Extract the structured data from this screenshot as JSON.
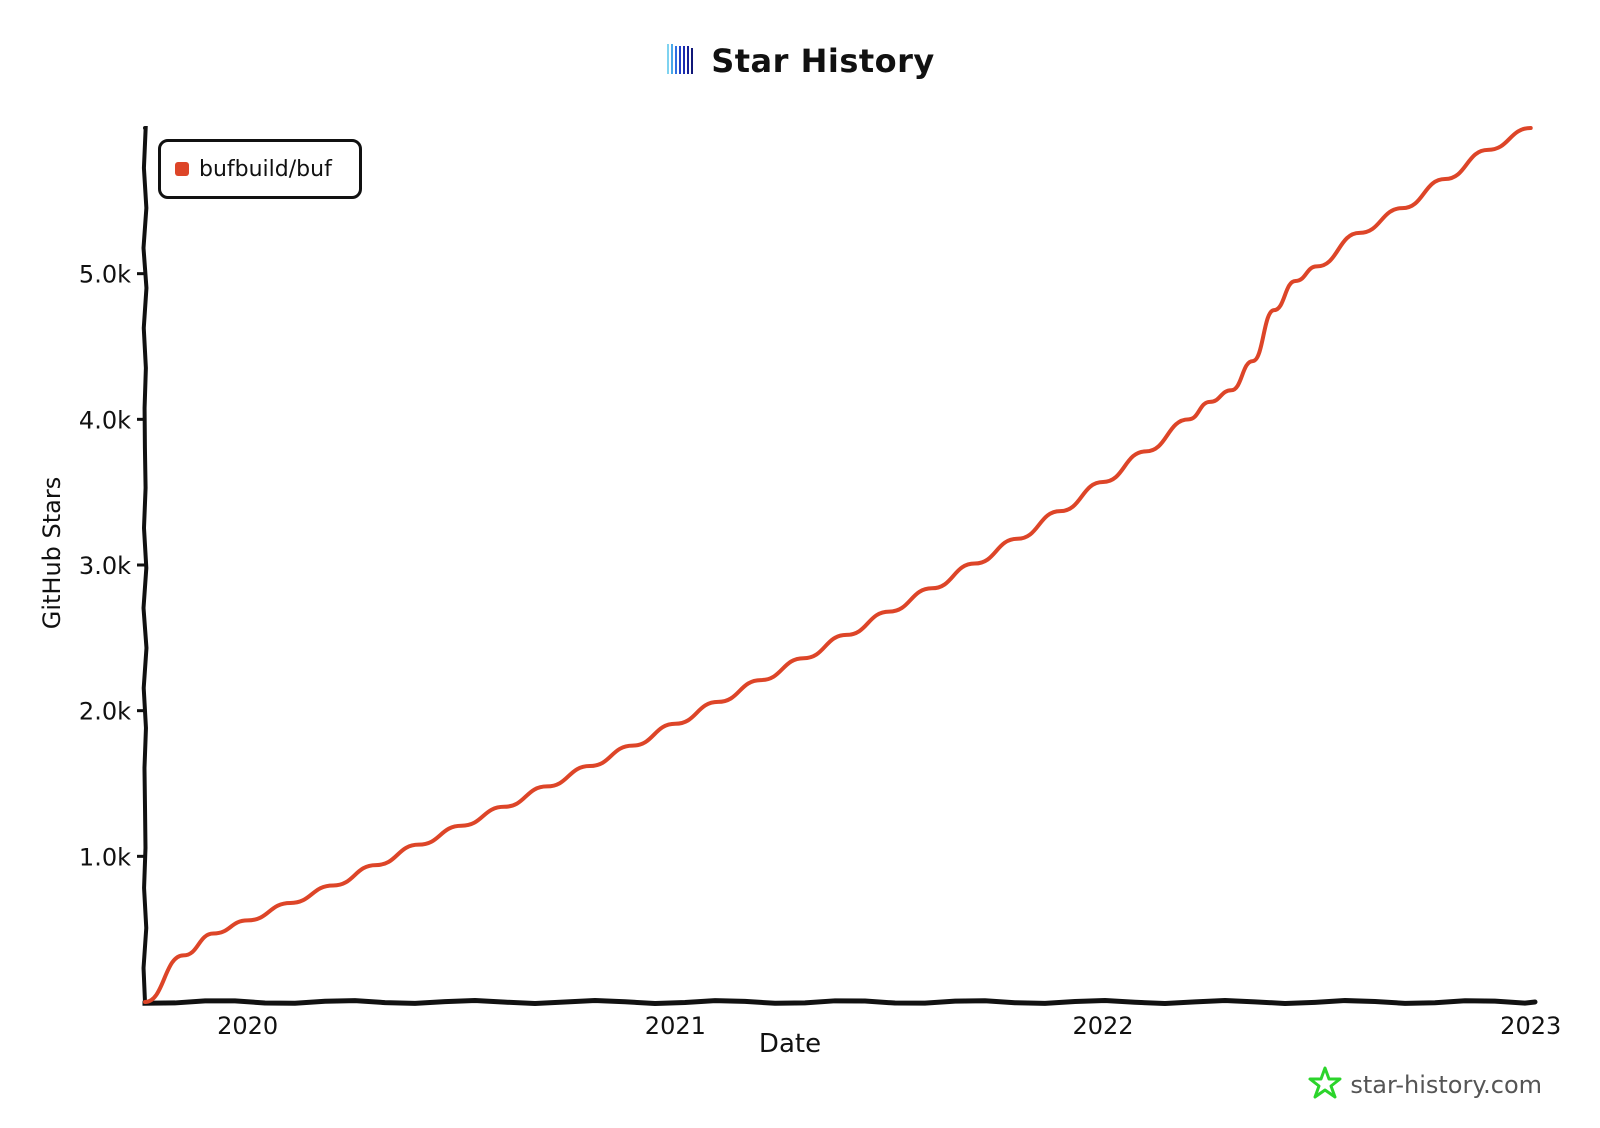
{
  "title": "Star History",
  "brand": {
    "text": "star-history.com",
    "icon": "star-icon",
    "color": "#2bd42b"
  },
  "logo_icon": "star-history-logo-icon",
  "chart_data": {
    "type": "line",
    "title": "Star History",
    "xlabel": "Date",
    "ylabel": "GitHub Stars",
    "x_ticks": [
      "2020",
      "2021",
      "2022",
      "2023"
    ],
    "y_ticks": [
      "1.0k",
      "2.0k",
      "3.0k",
      "4.0k",
      "5.0k"
    ],
    "y_tick_values": [
      1000,
      2000,
      3000,
      4000,
      5000
    ],
    "ylim": [
      0,
      6000
    ],
    "xlim": [
      2019.76,
      2023.01
    ],
    "legend": "top-left",
    "series": [
      {
        "name": "bufbuild/buf",
        "color": "#dd4528",
        "x": [
          2019.76,
          2019.85,
          2019.92,
          2020.0,
          2020.1,
          2020.2,
          2020.3,
          2020.4,
          2020.5,
          2020.6,
          2020.7,
          2020.8,
          2020.9,
          2021.0,
          2021.1,
          2021.2,
          2021.3,
          2021.4,
          2021.5,
          2021.6,
          2021.7,
          2021.8,
          2021.9,
          2022.0,
          2022.1,
          2022.2,
          2022.25,
          2022.3,
          2022.35,
          2022.4,
          2022.45,
          2022.5,
          2022.6,
          2022.7,
          2022.8,
          2022.9,
          2023.0
        ],
        "y": [
          0,
          320,
          470,
          560,
          680,
          800,
          940,
          1080,
          1210,
          1340,
          1480,
          1620,
          1760,
          1910,
          2060,
          2210,
          2360,
          2520,
          2680,
          2840,
          3010,
          3180,
          3370,
          3570,
          3780,
          4000,
          4120,
          4200,
          4400,
          4750,
          4950,
          5050,
          5280,
          5450,
          5650,
          5850,
          6000
        ]
      }
    ]
  }
}
